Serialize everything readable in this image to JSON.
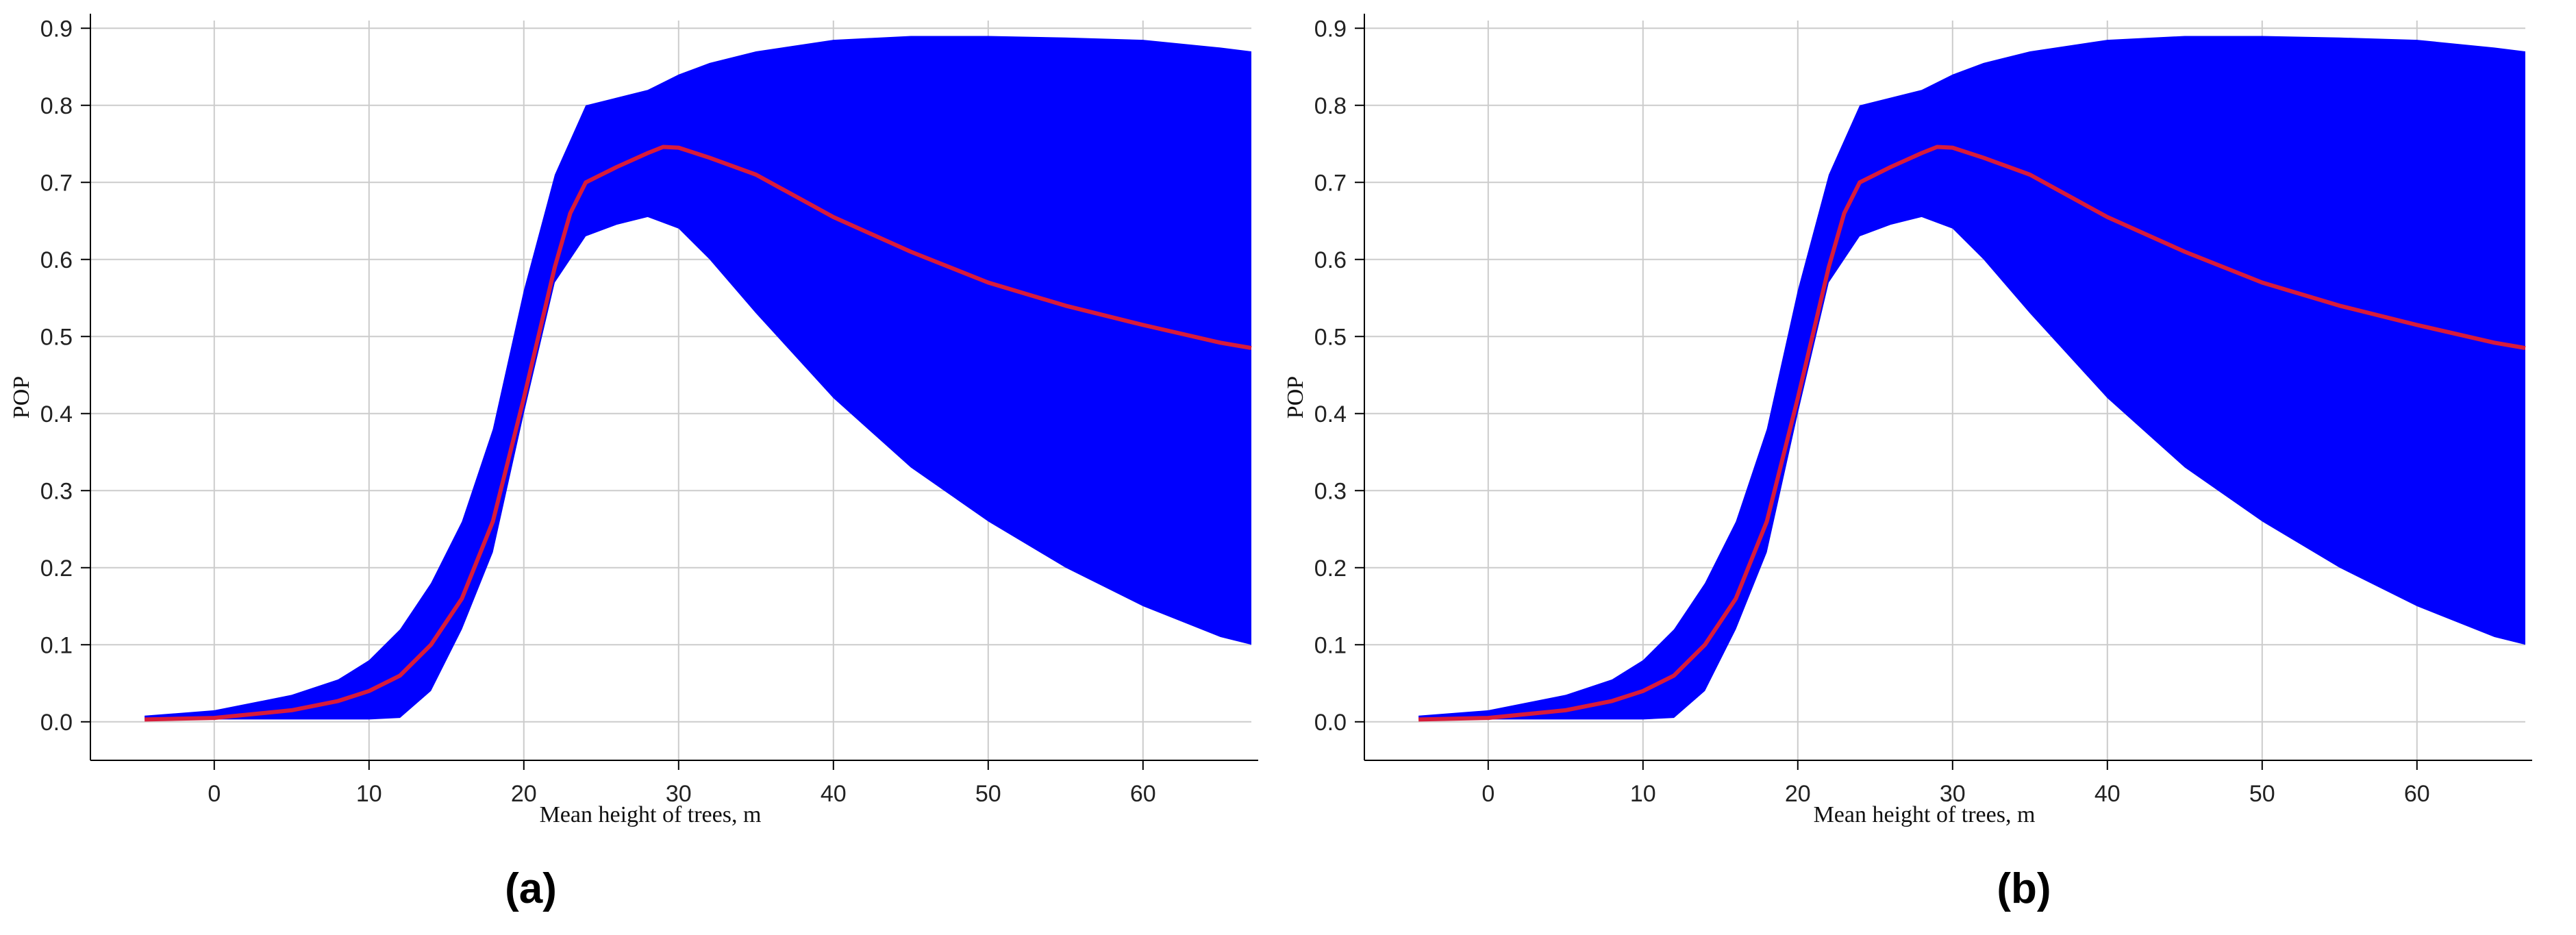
{
  "chart_data": [
    {
      "type": "area",
      "caption": "(a)",
      "xlabel": "Mean height of trees, m",
      "ylabel": "POP",
      "xlim": [
        -8,
        67
      ],
      "ylim": [
        -0.05,
        0.91
      ],
      "xticks": [
        0,
        10,
        20,
        30,
        40,
        50,
        60
      ],
      "yticks": [
        "0.0",
        "0.1",
        "0.2",
        "0.3",
        "0.4",
        "0.5",
        "0.6",
        "0.7",
        "0.8",
        "0.9"
      ],
      "grid": true,
      "colors": {
        "band": "#0000ff",
        "line": "#d81b3a",
        "grid": "#cccccc"
      },
      "series": [
        {
          "role": "band",
          "x": [
            -4.5,
            0,
            5,
            8,
            10,
            12,
            14,
            16,
            18,
            20,
            22,
            24,
            26,
            28,
            30,
            32,
            35,
            40,
            45,
            50,
            55,
            60,
            65,
            67
          ],
          "lower": [
            0.003,
            0.003,
            0.003,
            0.003,
            0.003,
            0.005,
            0.04,
            0.12,
            0.22,
            0.4,
            0.57,
            0.63,
            0.645,
            0.655,
            0.64,
            0.6,
            0.53,
            0.42,
            0.33,
            0.26,
            0.2,
            0.15,
            0.11,
            0.1
          ],
          "upper": [
            0.008,
            0.015,
            0.035,
            0.055,
            0.08,
            0.12,
            0.18,
            0.26,
            0.38,
            0.56,
            0.71,
            0.8,
            0.81,
            0.82,
            0.84,
            0.855,
            0.87,
            0.885,
            0.89,
            0.89,
            0.888,
            0.885,
            0.875,
            0.87
          ]
        },
        {
          "role": "line",
          "x": [
            -4.5,
            0,
            5,
            8,
            10,
            12,
            14,
            16,
            18,
            20,
            22,
            23,
            24,
            26,
            28,
            29,
            30,
            32,
            35,
            40,
            45,
            50,
            55,
            60,
            65,
            67
          ],
          "y": [
            0.003,
            0.005,
            0.015,
            0.027,
            0.04,
            0.06,
            0.1,
            0.16,
            0.26,
            0.42,
            0.59,
            0.66,
            0.7,
            0.72,
            0.738,
            0.746,
            0.745,
            0.732,
            0.71,
            0.655,
            0.61,
            0.57,
            0.54,
            0.515,
            0.492,
            0.485
          ]
        }
      ]
    },
    {
      "type": "area",
      "caption": "(b)",
      "xlabel": "Mean height of trees, m",
      "ylabel": "POP",
      "xlim": [
        -8,
        67
      ],
      "ylim": [
        -0.05,
        0.91
      ],
      "xticks": [
        0,
        10,
        20,
        30,
        40,
        50,
        60
      ],
      "yticks": [
        "0.0",
        "0.1",
        "0.2",
        "0.3",
        "0.4",
        "0.5",
        "0.6",
        "0.7",
        "0.8",
        "0.9"
      ],
      "grid": true,
      "colors": {
        "band": "#0000ff",
        "line": "#d81b3a",
        "grid": "#cccccc"
      },
      "series": [
        {
          "role": "band",
          "x": [
            -4.5,
            0,
            5,
            8,
            10,
            12,
            14,
            16,
            18,
            20,
            22,
            24,
            26,
            28,
            30,
            32,
            35,
            40,
            45,
            50,
            55,
            60,
            65,
            67
          ],
          "lower": [
            0.003,
            0.003,
            0.003,
            0.003,
            0.003,
            0.005,
            0.04,
            0.12,
            0.22,
            0.4,
            0.57,
            0.63,
            0.645,
            0.655,
            0.64,
            0.6,
            0.53,
            0.42,
            0.33,
            0.26,
            0.2,
            0.15,
            0.11,
            0.1
          ],
          "upper": [
            0.008,
            0.015,
            0.035,
            0.055,
            0.08,
            0.12,
            0.18,
            0.26,
            0.38,
            0.56,
            0.71,
            0.8,
            0.81,
            0.82,
            0.84,
            0.855,
            0.87,
            0.885,
            0.89,
            0.89,
            0.888,
            0.885,
            0.875,
            0.87
          ]
        },
        {
          "role": "line",
          "x": [
            -4.5,
            0,
            5,
            8,
            10,
            12,
            14,
            16,
            18,
            20,
            22,
            23,
            24,
            26,
            28,
            29,
            30,
            32,
            35,
            40,
            45,
            50,
            55,
            60,
            65,
            67
          ],
          "y": [
            0.003,
            0.005,
            0.015,
            0.027,
            0.04,
            0.06,
            0.1,
            0.16,
            0.26,
            0.42,
            0.59,
            0.66,
            0.7,
            0.72,
            0.738,
            0.746,
            0.745,
            0.732,
            0.71,
            0.655,
            0.61,
            0.57,
            0.54,
            0.515,
            0.492,
            0.485
          ]
        }
      ]
    }
  ]
}
